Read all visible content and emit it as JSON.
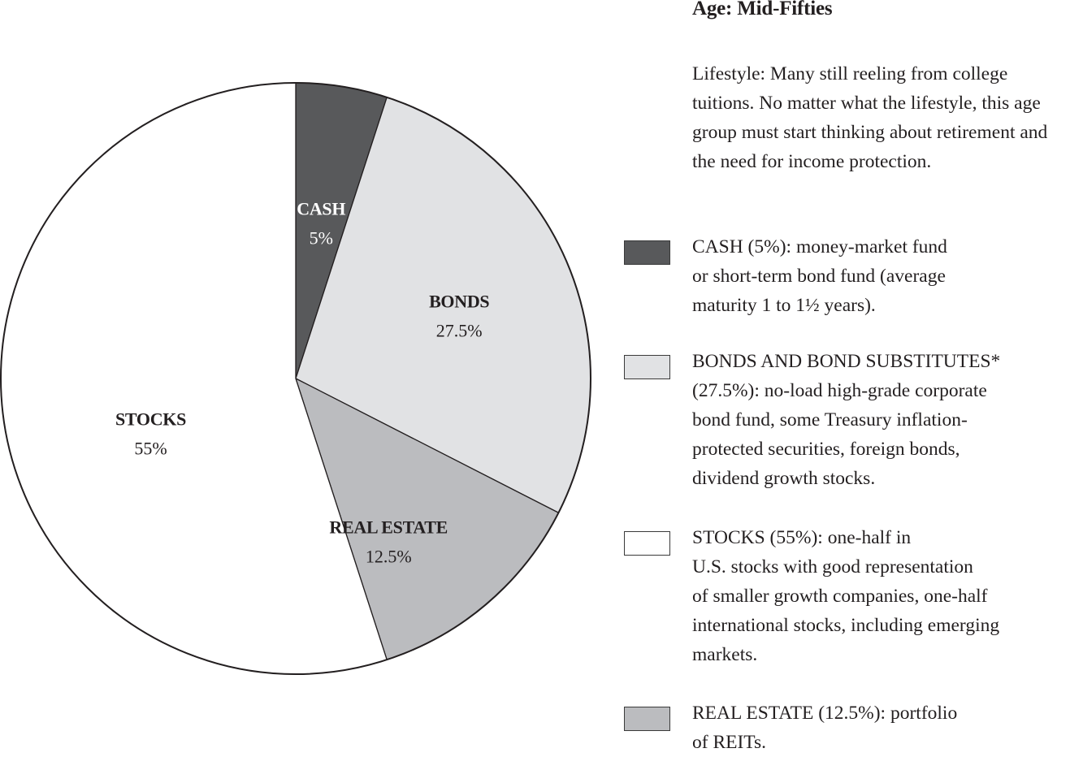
{
  "chart_data": {
    "type": "pie",
    "title": "Age: Mid-Fifties",
    "start": "12 o'clock",
    "direction": "clockwise",
    "slices": [
      {
        "label": "CASH",
        "value": 5,
        "value_label": "5%",
        "color": "#58595b",
        "text_color": "#ffffff"
      },
      {
        "label": "BONDS",
        "value": 27.5,
        "value_label": "27.5%",
        "color": "#e1e2e4",
        "text_color": "#231f20"
      },
      {
        "label": "REAL ESTATE",
        "value": 12.5,
        "value_label": "12.5%",
        "color": "#bbbcbf",
        "text_color": "#231f20"
      },
      {
        "label": "STOCKS",
        "value": 55,
        "value_label": "55%",
        "color": "#ffffff",
        "text_color": "#231f20"
      }
    ],
    "outline_color": "#231f20"
  },
  "sidebar": {
    "title": "Age: Mid-Fifties",
    "intro": "Lifestyle: Many still reeling from college tuitions. No matter what the lifestyle, this age group must start thinking about retirement and the need for income protection.",
    "legend": [
      {
        "key": "cash",
        "color": "#58595b",
        "text": "CASH (5%): money-market fund\nor short-term bond fund (average\nmaturity 1 to 1½ years)."
      },
      {
        "key": "bonds",
        "color": "#e1e2e4",
        "text": "BONDS AND BOND SUBSTITUTES*\n (27.5%): no-load high-grade corporate\nbond fund, some Treasury inflation-\nprotected securities, foreign bonds,\ndividend growth stocks."
      },
      {
        "key": "stocks",
        "color": "#ffffff",
        "text": "STOCKS (55%): one-half in\nU.S. stocks with good representation\nof smaller growth companies, one-half\ninternational stocks, including emerging\nmarkets."
      },
      {
        "key": "real-estate",
        "color": "#bbbcbf",
        "text": "REAL ESTATE (12.5%): portfolio\nof REITs."
      }
    ]
  }
}
